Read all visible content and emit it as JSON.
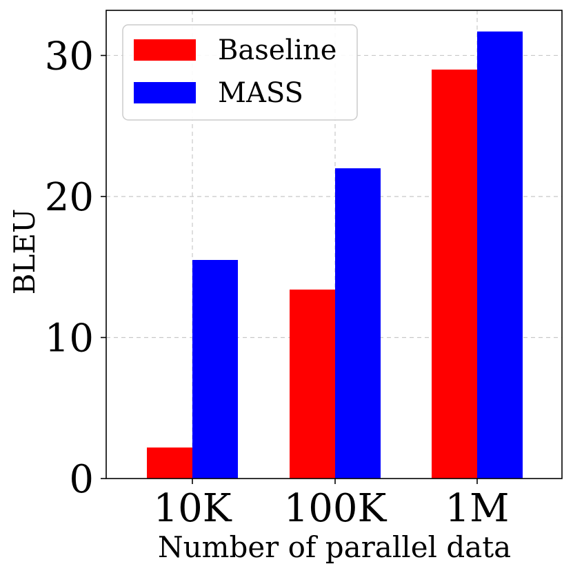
{
  "chart_data": {
    "type": "bar",
    "title": "",
    "xlabel": "Number of parallel data",
    "ylabel": "BLEU",
    "categories": [
      "10K",
      "100K",
      "1M"
    ],
    "series": [
      {
        "name": "Baseline",
        "color": "#ff0000",
        "values": [
          2.2,
          13.4,
          29.0
        ]
      },
      {
        "name": "MASS",
        "color": "#0000ff",
        "values": [
          15.5,
          22.0,
          31.7
        ]
      }
    ],
    "ylim": [
      0,
      33.2
    ],
    "yticks": [
      0,
      10,
      20,
      30
    ],
    "ytick_labels": [
      "0",
      "10",
      "20",
      "30"
    ],
    "grid": true,
    "legend_position": "top-left"
  }
}
